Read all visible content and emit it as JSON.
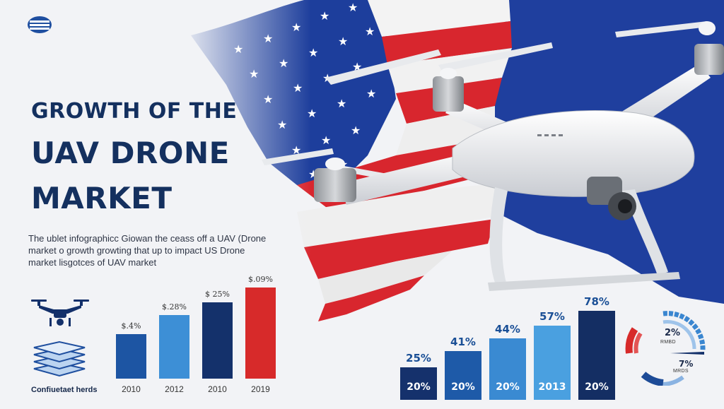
{
  "title": {
    "line1": "GROWTH OF THE",
    "line2": "UAV DRONE",
    "line3": "MARKET"
  },
  "description": {
    "line1": "The ublet infographicc Giowan the ceass off a UAV (Drone",
    "line2": "market o growth growting that up to impact US Drone",
    "line3": "market lisgotces of UAV market"
  },
  "logo_caption": "Confiuetaet herds",
  "left_chart": {
    "bars": [
      {
        "value_label": "$.4%",
        "year": "2010",
        "color": "#1d55a3",
        "level": 0.42
      },
      {
        "value_label": "$.28%",
        "year": "2012",
        "color": "#3d8fd6",
        "level": 0.6
      },
      {
        "value_label": "$ 25%",
        "year": "2010",
        "color": "#14316b",
        "level": 0.72
      },
      {
        "value_label": "$.09%",
        "year": "2019",
        "color": "#d72a2a",
        "level": 0.86
      }
    ]
  },
  "right_chart": {
    "bars": [
      {
        "top_label": "25%",
        "inner_label": "20%",
        "color": "#15316c",
        "level": 0.33
      },
      {
        "top_label": "41%",
        "inner_label": "20%",
        "color": "#1e5aa8",
        "level": 0.49
      },
      {
        "top_label": "44%",
        "inner_label": "20%",
        "color": "#3a8ad2",
        "level": 0.62
      },
      {
        "top_label": "57%",
        "inner_label": "2013",
        "color": "#4aa0e0",
        "level": 0.75
      },
      {
        "top_label": "78%",
        "inner_label": "20%",
        "color": "#142e63",
        "level": 0.9
      }
    ]
  },
  "gauge": {
    "value1": "2%",
    "sub1": "RMBD",
    "value2": "7%",
    "sub2": "MRDS"
  },
  "colors": {
    "navy": "#14305f",
    "flag_red": "#d8262e",
    "flag_blue": "#1f3f9e",
    "drone_white": "#eef0f2"
  }
}
